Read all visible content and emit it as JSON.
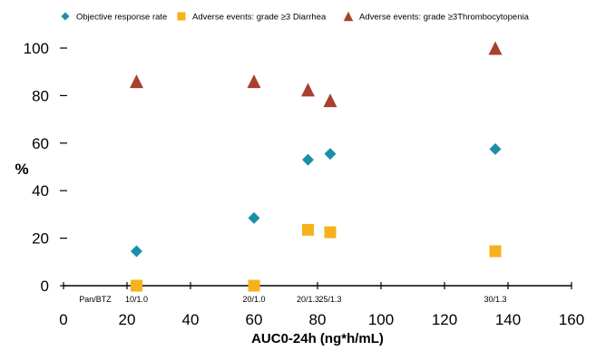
{
  "chart_data": {
    "type": "scatter",
    "title": "",
    "xlabel": "AUC0-24h (ng*h/mL)",
    "ylabel": "%",
    "xlim": [
      0,
      160
    ],
    "ylim": [
      0,
      100
    ],
    "xticks": [
      0,
      20,
      40,
      60,
      80,
      100,
      120,
      140,
      160
    ],
    "yticks": [
      0,
      20,
      40,
      60,
      80,
      100
    ],
    "grid": false,
    "legend_position": "top",
    "series": [
      {
        "name": "Objective response rate",
        "marker": "diamond",
        "color": "#1b8fa8",
        "points": [
          {
            "x": 23,
            "y": 14.5
          },
          {
            "x": 60,
            "y": 28.5
          },
          {
            "x": 77,
            "y": 53
          },
          {
            "x": 84,
            "y": 55.5
          },
          {
            "x": 136,
            "y": 57.5
          }
        ]
      },
      {
        "name": "Adverse events: grade ≥3 Diarrhea",
        "marker": "square",
        "color": "#f5b21c",
        "points": [
          {
            "x": 23,
            "y": 0
          },
          {
            "x": 60,
            "y": 0
          },
          {
            "x": 77,
            "y": 23.5
          },
          {
            "x": 84,
            "y": 22.5
          },
          {
            "x": 136,
            "y": 14.5
          }
        ]
      },
      {
        "name": "Adverse events: grade ≥3Thrombocytopenia",
        "marker": "triangle",
        "color": "#a8402e",
        "points": [
          {
            "x": 23,
            "y": 86
          },
          {
            "x": 60,
            "y": 86
          },
          {
            "x": 77,
            "y": 82.5
          },
          {
            "x": 84,
            "y": 78
          },
          {
            "x": 136,
            "y": 100
          }
        ]
      }
    ],
    "annotations": [
      {
        "text": "Pan/BTZ",
        "x": 10
      },
      {
        "text": "10/1.0",
        "x": 23
      },
      {
        "text": "20/1.0",
        "x": 60
      },
      {
        "text": "20/1.3",
        "x": 77
      },
      {
        "text": "25/1.3",
        "x": 84
      },
      {
        "text": "30/1.3",
        "x": 136
      }
    ]
  }
}
